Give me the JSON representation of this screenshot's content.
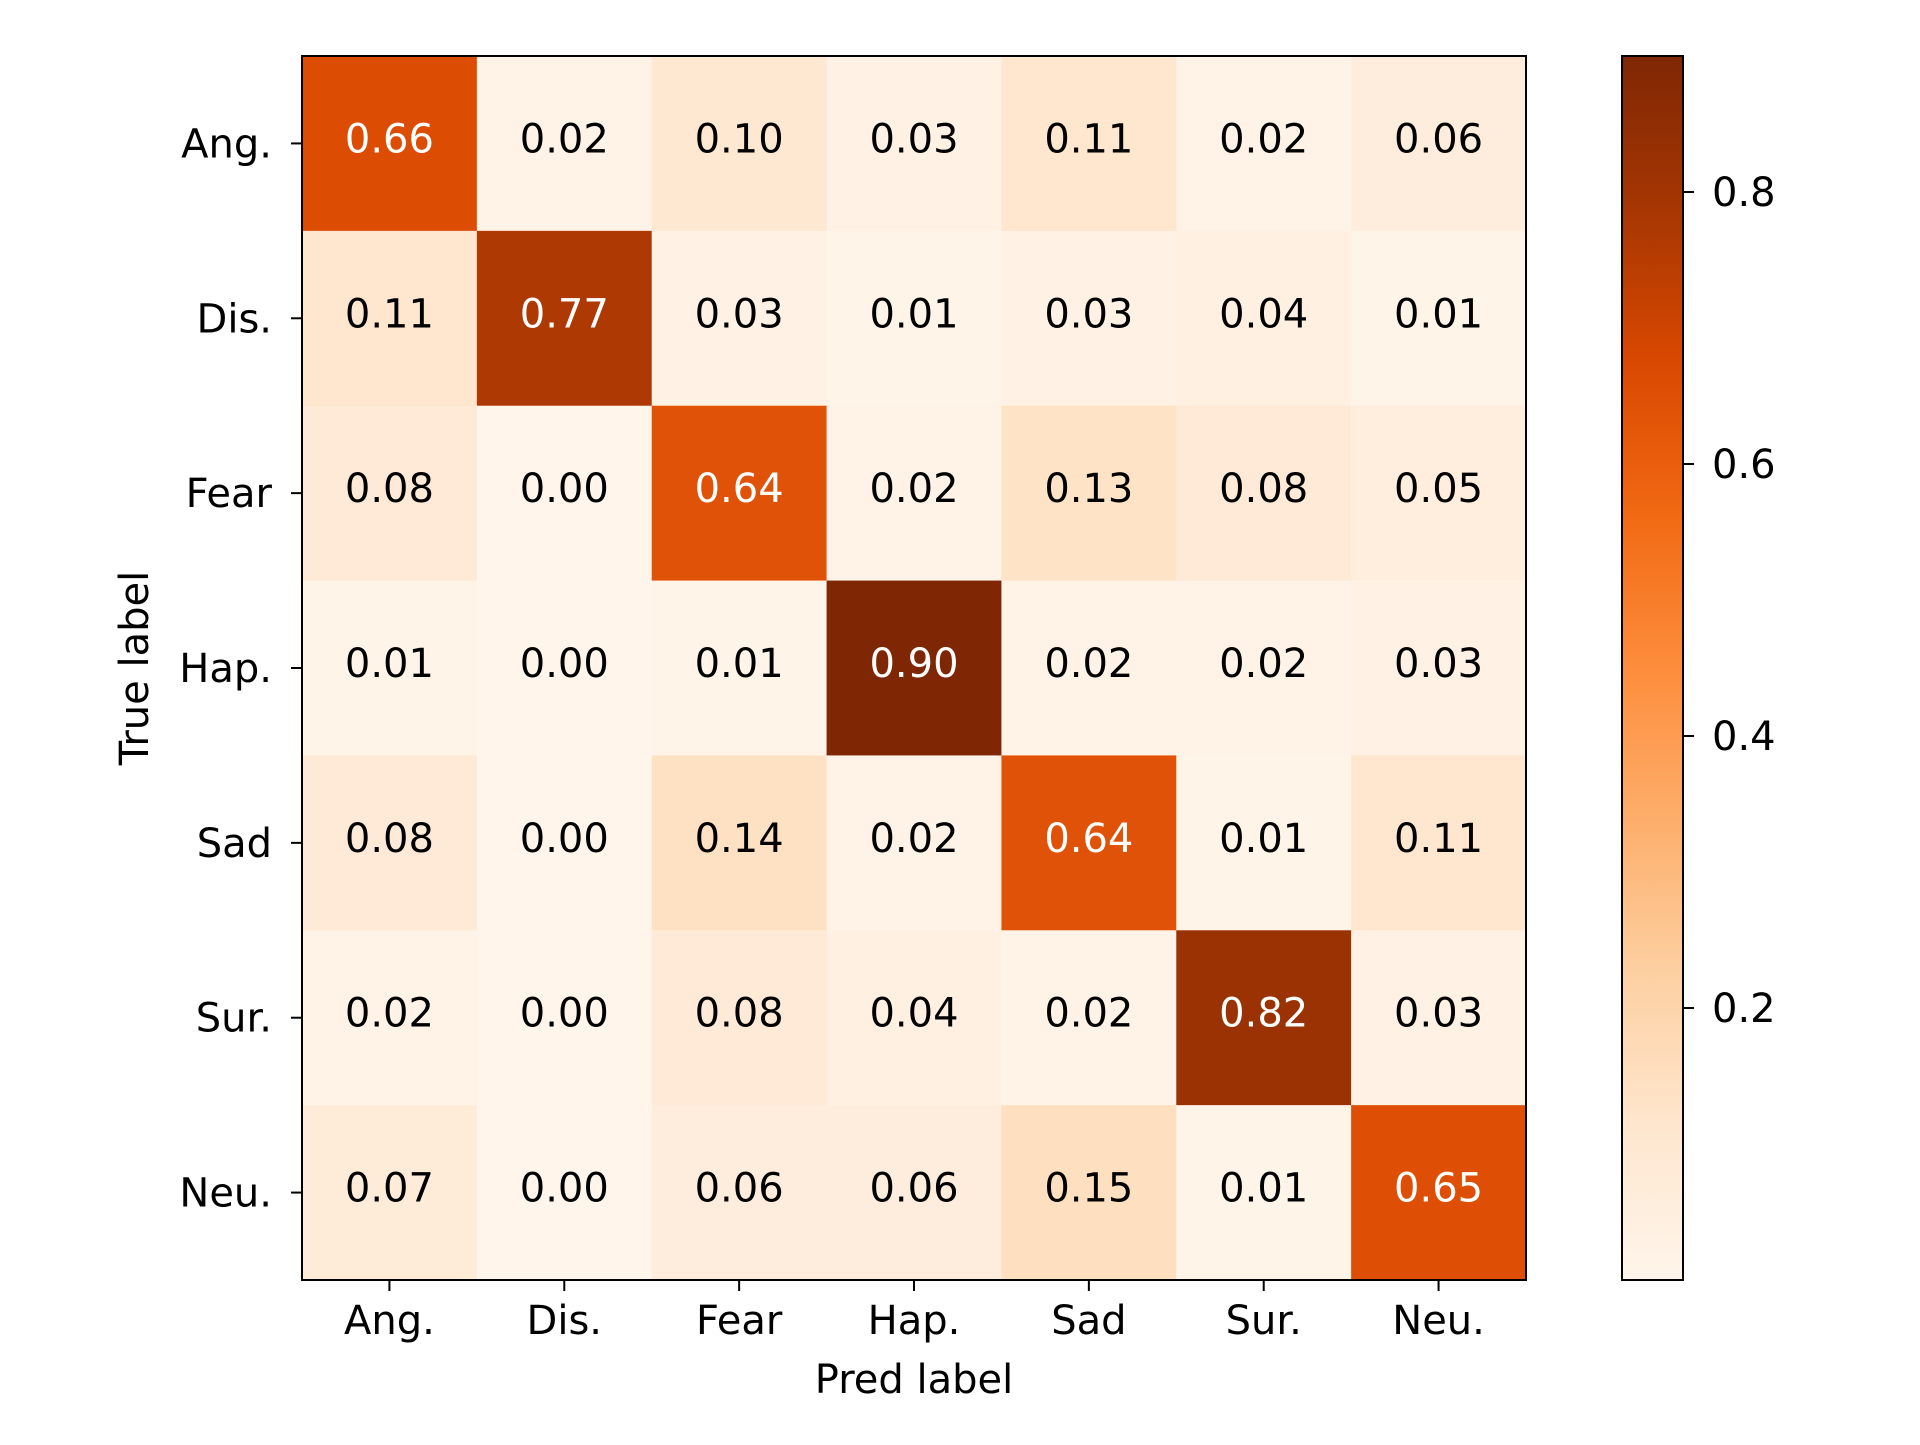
{
  "chart_data": {
    "type": "heatmap",
    "title": "",
    "xlabel": "Pred label",
    "ylabel": "True label",
    "x_categories": [
      "Ang.",
      "Dis.",
      "Fear",
      "Hap.",
      "Sad",
      "Sur.",
      "Neu."
    ],
    "y_categories": [
      "Ang.",
      "Dis.",
      "Fear",
      "Hap.",
      "Sad",
      "Sur.",
      "Neu."
    ],
    "values": [
      [
        0.66,
        0.02,
        0.1,
        0.03,
        0.11,
        0.02,
        0.06
      ],
      [
        0.11,
        0.77,
        0.03,
        0.01,
        0.03,
        0.04,
        0.01
      ],
      [
        0.08,
        0.0,
        0.64,
        0.02,
        0.13,
        0.08,
        0.05
      ],
      [
        0.01,
        0.0,
        0.01,
        0.9,
        0.02,
        0.02,
        0.03
      ],
      [
        0.08,
        0.0,
        0.14,
        0.02,
        0.64,
        0.01,
        0.11
      ],
      [
        0.02,
        0.0,
        0.08,
        0.04,
        0.02,
        0.82,
        0.03
      ],
      [
        0.07,
        0.0,
        0.06,
        0.06,
        0.15,
        0.01,
        0.65
      ]
    ],
    "colormap": "Oranges",
    "colorbar": {
      "range": [
        0.0,
        0.9
      ],
      "ticks": [
        "0.2",
        "0.4",
        "0.6",
        "0.8"
      ]
    },
    "annotation_threshold": 0.45,
    "text_colors": {
      "dark": "#000000",
      "light": "#ffffff"
    }
  }
}
